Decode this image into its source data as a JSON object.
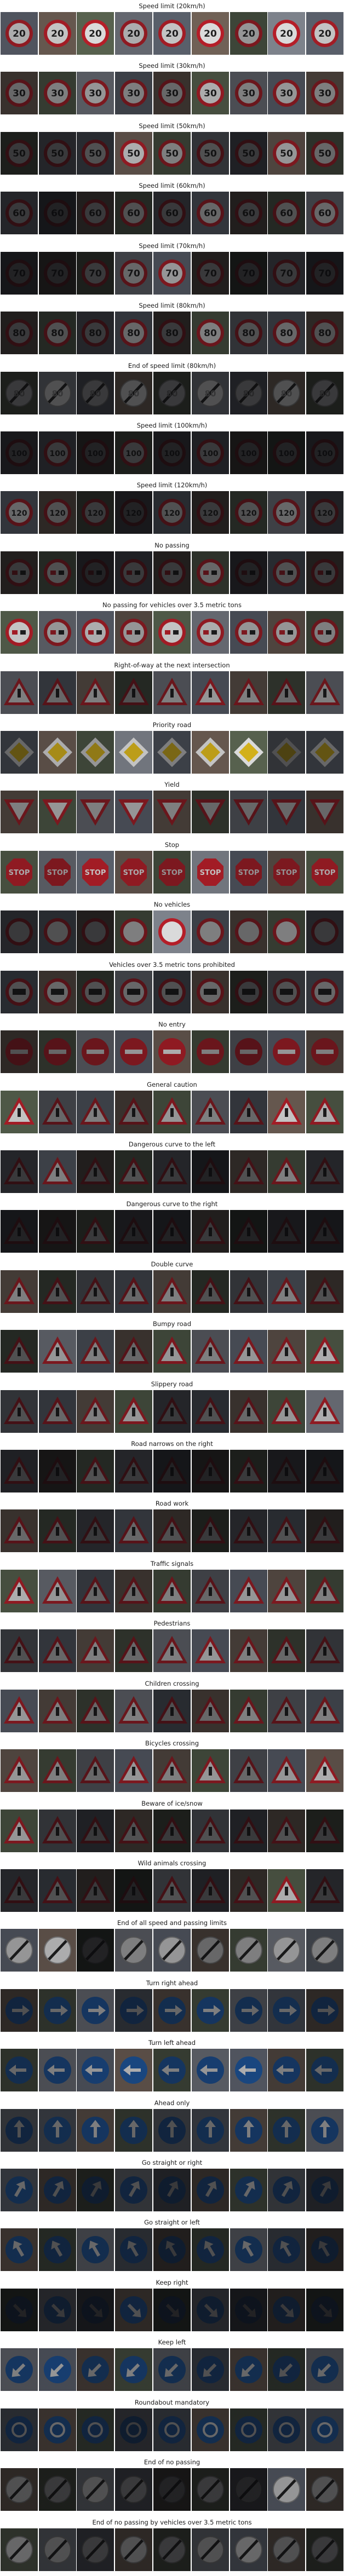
{
  "figure": {
    "rows": [
      {
        "label": "Speed limit (20km/h)",
        "sign": "speed",
        "value": "20",
        "brightness": [
          0.7,
          0.8,
          0.9,
          0.7,
          0.8,
          0.9,
          0.6,
          0.9,
          0.8
        ]
      },
      {
        "label": "Speed limit (30km/h)",
        "sign": "speed",
        "value": "30",
        "brightness": [
          0.4,
          0.5,
          0.6,
          0.5,
          0.4,
          0.7,
          0.5,
          0.6,
          0.5
        ]
      },
      {
        "label": "Speed limit (50km/h)",
        "sign": "speed",
        "value": "50",
        "brightness": [
          0.2,
          0.2,
          0.3,
          0.7,
          0.5,
          0.3,
          0.2,
          0.6,
          0.4
        ]
      },
      {
        "label": "Speed limit (60km/h)",
        "sign": "speed",
        "value": "60",
        "brightness": [
          0.2,
          0.1,
          0.2,
          0.3,
          0.2,
          0.4,
          0.2,
          0.3,
          0.4
        ]
      },
      {
        "label": "Speed limit (70km/h)",
        "sign": "speed",
        "value": "70",
        "brightness": [
          0.1,
          0.1,
          0.2,
          0.4,
          0.6,
          0.2,
          0.1,
          0.2,
          0.1
        ]
      },
      {
        "label": "Speed limit (80km/h)",
        "sign": "speed",
        "value": "80",
        "brightness": [
          0.2,
          0.3,
          0.2,
          0.4,
          0.2,
          0.5,
          0.3,
          0.4,
          0.3
        ]
      },
      {
        "label": "End of speed limit (80km/h)",
        "sign": "end",
        "value": "80",
        "brightness": [
          0.2,
          0.3,
          0.2,
          0.3,
          0.2,
          0.3,
          0.2,
          0.3,
          0.2
        ]
      },
      {
        "label": "Speed limit (100km/h)",
        "sign": "speed",
        "value": "100",
        "brightness": [
          0.1,
          0.2,
          0.1,
          0.2,
          0.1,
          0.2,
          0.1,
          0.1,
          0.1
        ]
      },
      {
        "label": "Speed limit (120km/h)",
        "sign": "speed",
        "value": "120",
        "brightness": [
          0.4,
          0.3,
          0.2,
          0.1,
          0.3,
          0.2,
          0.3,
          0.4,
          0.2
        ]
      },
      {
        "label": "No passing",
        "sign": "nopass",
        "value": "",
        "brightness": [
          0.2,
          0.3,
          0.1,
          0.2,
          0.2,
          0.4,
          0.1,
          0.3,
          0.2
        ]
      },
      {
        "label": "No passing for vehicles over 3.5 metric tons",
        "sign": "nopass",
        "value": "",
        "brightness": [
          0.8,
          0.6,
          0.7,
          0.6,
          0.8,
          0.7,
          0.6,
          0.6,
          0.5
        ]
      },
      {
        "label": "Right-of-way at the next intersection",
        "sign": "triangle",
        "value": "",
        "brightness": [
          0.5,
          0.4,
          0.5,
          0.3,
          0.5,
          0.6,
          0.5,
          0.4,
          0.5
        ]
      },
      {
        "label": "Priority road",
        "sign": "priority",
        "value": "",
        "brightness": [
          0.4,
          0.7,
          0.6,
          0.8,
          0.5,
          0.8,
          0.9,
          0.3,
          0.4
        ]
      },
      {
        "label": "Yield",
        "sign": "yield",
        "value": "",
        "brightness": [
          0.5,
          0.6,
          0.5,
          0.6,
          0.5,
          0.4,
          0.4,
          0.4,
          0.4
        ]
      },
      {
        "label": "Stop",
        "sign": "stop",
        "value": "",
        "brightness": [
          0.7,
          0.6,
          0.8,
          0.7,
          0.6,
          0.8,
          0.6,
          0.6,
          0.7
        ]
      },
      {
        "label": "No vehicles",
        "sign": "novehicles",
        "value": "",
        "brightness": [
          0.2,
          0.3,
          0.2,
          0.5,
          0.9,
          0.5,
          0.4,
          0.5,
          0.2
        ]
      },
      {
        "label": "Vehicles over 3.5 metric tons prohibited",
        "sign": "truck",
        "value": "",
        "brightness": [
          0.3,
          0.4,
          0.3,
          0.4,
          0.3,
          0.4,
          0.2,
          0.3,
          0.4
        ]
      },
      {
        "label": "No entry",
        "sign": "noentry",
        "value": "",
        "brightness": [
          0.3,
          0.4,
          0.5,
          0.6,
          0.7,
          0.5,
          0.4,
          0.6,
          0.5
        ]
      },
      {
        "label": "General caution",
        "sign": "triangle",
        "value": "",
        "brightness": [
          0.8,
          0.4,
          0.5,
          0.4,
          0.6,
          0.5,
          0.4,
          0.8,
          0.7
        ]
      },
      {
        "label": "Dangerous curve to the left",
        "sign": "triangle",
        "value": "",
        "brightness": [
          0.2,
          0.5,
          0.2,
          0.3,
          0.2,
          0.1,
          0.3,
          0.5,
          0.2
        ]
      },
      {
        "label": "Dangerous curve to the right",
        "sign": "triangle",
        "value": "",
        "brightness": [
          0.1,
          0.1,
          0.2,
          0.1,
          0.1,
          0.2,
          0.1,
          0.1,
          0.1
        ]
      },
      {
        "label": "Double curve",
        "sign": "triangle",
        "value": "",
        "brightness": [
          0.5,
          0.3,
          0.3,
          0.4,
          0.5,
          0.3,
          0.3,
          0.5,
          0.3
        ]
      },
      {
        "label": "Bumpy road",
        "sign": "triangle",
        "value": "",
        "brightness": [
          0.3,
          0.6,
          0.5,
          0.4,
          0.6,
          0.5,
          0.6,
          0.6,
          0.7
        ]
      },
      {
        "label": "Slippery road",
        "sign": "triangle",
        "value": "",
        "brightness": [
          0.3,
          0.4,
          0.5,
          0.6,
          0.2,
          0.3,
          0.4,
          0.6,
          0.7
        ]
      },
      {
        "label": "Road narrows on the right",
        "sign": "triangle",
        "value": "",
        "brightness": [
          0.2,
          0.1,
          0.3,
          0.2,
          0.1,
          0.1,
          0.2,
          0.1,
          0.1
        ]
      },
      {
        "label": "Road work",
        "sign": "triangle",
        "value": "",
        "brightness": [
          0.4,
          0.3,
          0.2,
          0.4,
          0.3,
          0.2,
          0.2,
          0.3,
          0.2
        ]
      },
      {
        "label": "Traffic signals",
        "sign": "triangle",
        "value": "",
        "brightness": [
          0.7,
          0.6,
          0.4,
          0.4,
          0.5,
          0.4,
          0.6,
          0.6,
          0.5
        ]
      },
      {
        "label": "Pedestrians",
        "sign": "triangle",
        "value": "",
        "brightness": [
          0.3,
          0.4,
          0.5,
          0.4,
          0.5,
          0.6,
          0.5,
          0.4,
          0.3
        ]
      },
      {
        "label": "Children crossing",
        "sign": "triangle",
        "value": "",
        "brightness": [
          0.6,
          0.5,
          0.4,
          0.5,
          0.3,
          0.4,
          0.5,
          0.4,
          0.5
        ]
      },
      {
        "label": "Bicycles crossing",
        "sign": "triangle",
        "value": "",
        "brightness": [
          0.6,
          0.5,
          0.4,
          0.6,
          0.5,
          0.6,
          0.4,
          0.6,
          0.7
        ]
      },
      {
        "label": "Beware of ice/snow",
        "sign": "triangle",
        "value": "",
        "brightness": [
          0.6,
          0.3,
          0.2,
          0.3,
          0.2,
          0.3,
          0.2,
          0.3,
          0.2
        ]
      },
      {
        "label": "Wild animals crossing",
        "sign": "triangle",
        "value": "",
        "brightness": [
          0.2,
          0.3,
          0.2,
          0.1,
          0.3,
          0.2,
          0.3,
          0.7,
          0.2
        ]
      },
      {
        "label": "End of all speed and passing limits",
        "sign": "end",
        "value": "",
        "brightness": [
          0.6,
          0.7,
          0.1,
          0.5,
          0.6,
          0.4,
          0.5,
          0.6,
          0.5
        ]
      },
      {
        "label": "Turn right ahead",
        "sign": "arrow",
        "value": "right",
        "brightness": [
          0.3,
          0.4,
          0.5,
          0.3,
          0.4,
          0.5,
          0.4,
          0.4,
          0.3
        ]
      },
      {
        "label": "Turn left ahead",
        "sign": "arrow",
        "value": "left",
        "brightness": [
          0.4,
          0.5,
          0.6,
          0.7,
          0.5,
          0.6,
          0.7,
          0.5,
          0.4
        ]
      },
      {
        "label": "Ahead only",
        "sign": "arrow",
        "value": "up",
        "brightness": [
          0.3,
          0.4,
          0.5,
          0.4,
          0.3,
          0.4,
          0.5,
          0.4,
          0.5
        ]
      },
      {
        "label": "Go straight or right",
        "sign": "arrow",
        "value": "up-right",
        "brightness": [
          0.4,
          0.3,
          0.2,
          0.3,
          0.2,
          0.3,
          0.4,
          0.3,
          0.2
        ]
      },
      {
        "label": "Go straight or left",
        "sign": "arrow",
        "value": "up-left",
        "brightness": [
          0.4,
          0.3,
          0.4,
          0.3,
          0.2,
          0.3,
          0.4,
          0.3,
          0.2
        ]
      },
      {
        "label": "Keep right",
        "sign": "arrow",
        "value": "down-right",
        "brightness": [
          0.1,
          0.2,
          0.1,
          0.3,
          0.1,
          0.2,
          0.1,
          0.2,
          0.1
        ]
      },
      {
        "label": "Keep left",
        "sign": "arrow",
        "value": "down-left",
        "brightness": [
          0.5,
          0.6,
          0.4,
          0.5,
          0.4,
          0.3,
          0.4,
          0.3,
          0.4
        ]
      },
      {
        "label": "Roundabout mandatory",
        "sign": "roundabout",
        "value": "",
        "brightness": [
          0.3,
          0.4,
          0.3,
          0.2,
          0.3,
          0.4,
          0.3,
          0.3,
          0.4
        ]
      },
      {
        "label": "End of no passing",
        "sign": "end",
        "value": "",
        "brightness": [
          0.3,
          0.2,
          0.3,
          0.2,
          0.1,
          0.2,
          0.1,
          0.6,
          0.3
        ]
      },
      {
        "label": "End of no passing by vehicles over 3.5 metric tons",
        "sign": "end",
        "value": "",
        "brightness": [
          0.4,
          0.3,
          0.2,
          0.3,
          0.2,
          0.3,
          0.4,
          0.3,
          0.2
        ]
      }
    ]
  }
}
